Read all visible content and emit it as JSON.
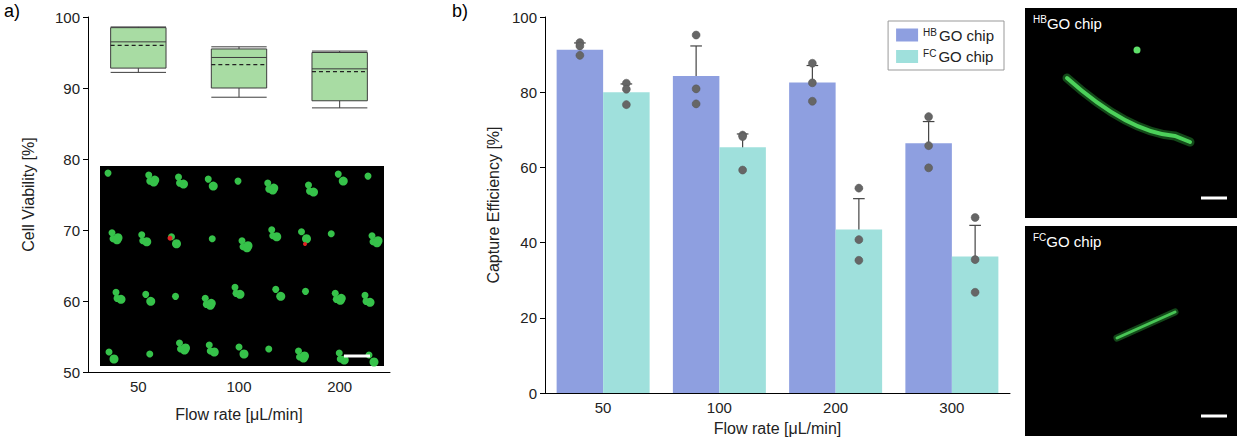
{
  "chart_data": [
    {
      "type": "boxplot",
      "panel_label": "a)",
      "x_label": "Flow rate [μL/min]",
      "y_label": "Cell Viability [%]",
      "categories": [
        "50",
        "100",
        "200"
      ],
      "boxes": [
        {
          "min": 92.2,
          "q1": 92.8,
          "median": 96.5,
          "q3": 98.5,
          "max": 98.6,
          "mean": 96.0
        },
        {
          "min": 88.7,
          "q1": 90.0,
          "median": 94.3,
          "q3": 95.5,
          "max": 95.8,
          "mean": 93.3
        },
        {
          "min": 87.2,
          "q1": 88.2,
          "median": 92.7,
          "q3": 95.0,
          "max": 95.2,
          "mean": 92.3
        }
      ],
      "color": "#a8dca3",
      "ylim": [
        50,
        100
      ],
      "yticks": [
        50,
        60,
        70,
        80,
        90,
        100
      ],
      "grid": false
    },
    {
      "type": "bar",
      "panel_label": "b)",
      "x_label": "Flow rate [μL/min]",
      "y_label": "Capture Efficiency [%]",
      "categories": [
        "50",
        "100",
        "200",
        "300"
      ],
      "series": [
        {
          "name": "HB GO chip",
          "color": "#8e9fe0",
          "values": [
            91.3,
            84.3,
            82.6,
            66.4
          ],
          "errors": [
            1.8,
            8.0,
            4.5,
            5.8
          ],
          "points": [
            [
              93.2,
              92.3,
              89.8
            ],
            [
              95.2,
              80.9,
              76.9
            ],
            [
              87.7,
              82.5,
              77.6
            ],
            [
              73.5,
              65.8,
              59.9
            ]
          ]
        },
        {
          "name": "FC GO chip",
          "color": "#9fe0dc",
          "values": [
            80.0,
            65.4,
            43.5,
            36.3
          ],
          "errors": [
            2.2,
            3.5,
            8.2,
            8.3
          ],
          "points": [
            [
              82.4,
              80.8,
              76.7
            ],
            [
              68.6,
              68.2,
              59.3
            ],
            [
              54.5,
              40.8,
              35.3
            ],
            [
              46.7,
              35.5,
              26.8
            ]
          ]
        }
      ],
      "legend": "top-right",
      "ylim": [
        0,
        100
      ],
      "yticks": [
        0,
        20,
        40,
        60,
        80,
        100
      ],
      "grid": false
    }
  ],
  "images": [
    {
      "label": "HB GO chip"
    },
    {
      "label": "FC GO chip"
    }
  ]
}
